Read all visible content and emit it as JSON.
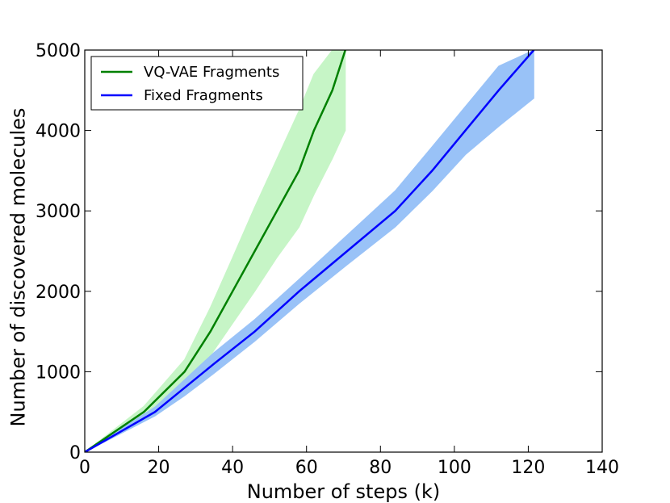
{
  "chart_data": {
    "type": "line",
    "title": "",
    "xlabel": "Number of steps (k)",
    "ylabel": "Number of discovered molecules",
    "xlim": [
      0,
      140
    ],
    "ylim": [
      0,
      5000
    ],
    "xticks": [
      0,
      20,
      40,
      60,
      80,
      100,
      120,
      140
    ],
    "yticks": [
      0,
      1000,
      2000,
      3000,
      4000,
      5000
    ],
    "xtick_labels": [
      "0",
      "20",
      "40",
      "60",
      "80",
      "100",
      "120",
      "140"
    ],
    "ytick_labels": [
      "0",
      "1000",
      "2000",
      "3000",
      "4000",
      "5000"
    ],
    "grid": false,
    "legend_position": "top-left",
    "series": [
      {
        "name": "VQ-VAE Fragments",
        "color": "#008000",
        "band_color": "#c6f5c6",
        "x": [
          0,
          16,
          27,
          34,
          40,
          46,
          52,
          58,
          62,
          67,
          70.5
        ],
        "y": [
          0,
          500,
          1000,
          1500,
          2000,
          2500,
          3000,
          3500,
          4000,
          4500,
          5000
        ],
        "lower": [
          0,
          440,
          830,
          1200,
          1600,
          2000,
          2420,
          2800,
          3200,
          3650,
          4000
        ],
        "upper": [
          0,
          570,
          1150,
          1800,
          2420,
          3050,
          3650,
          4250,
          4700,
          5000,
          5000
        ]
      },
      {
        "name": "Fixed Fragments",
        "color": "#0000ff",
        "band_color": "#99c2f7",
        "x": [
          0,
          19,
          27,
          35,
          46,
          58,
          71,
          84,
          94,
          103,
          112,
          121.5
        ],
        "y": [
          0,
          500,
          800,
          1100,
          1500,
          2000,
          2500,
          3000,
          3500,
          4000,
          4500,
          5000
        ],
        "lower": [
          0,
          450,
          700,
          980,
          1380,
          1850,
          2330,
          2800,
          3250,
          3700,
          4050,
          4400
        ],
        "upper": [
          0,
          560,
          900,
          1240,
          1650,
          2150,
          2700,
          3250,
          3800,
          4300,
          4800,
          5000
        ]
      }
    ]
  }
}
